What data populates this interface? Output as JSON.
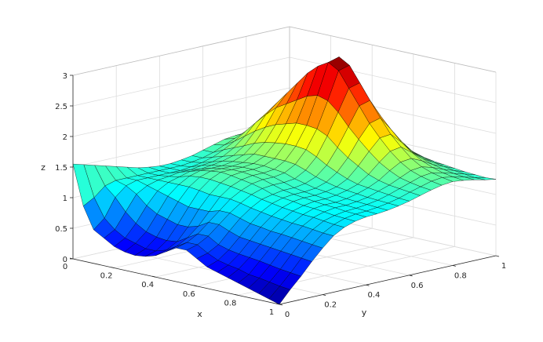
{
  "chart_data": {
    "type": "surface",
    "xlabel": "x",
    "ylabel": "y",
    "zlabel": "z",
    "xlim": [
      0,
      1
    ],
    "ylim": [
      0,
      1
    ],
    "zlim": [
      0,
      3
    ],
    "xticks": [
      "0",
      "0.2",
      "0.4",
      "0.6",
      "0.8",
      "1"
    ],
    "yticks": [
      "0",
      "0.2",
      "0.4",
      "0.6",
      "0.8",
      "1"
    ],
    "zticks": [
      "0",
      "0.5",
      "1",
      "1.5",
      "2",
      "2.5",
      "3"
    ],
    "grid": true,
    "colormap": "jet",
    "colormap_stops": [
      "#00008f",
      "#0000ff",
      "#00ffff",
      "#ffff00",
      "#ff0000",
      "#800000"
    ],
    "edge_color": "#000000",
    "x": [
      0,
      0.05,
      0.1,
      0.15,
      0.2,
      0.25,
      0.3,
      0.35,
      0.4,
      0.45,
      0.5,
      0.55,
      0.6,
      0.65,
      0.7,
      0.75,
      0.8,
      0.85,
      0.9,
      0.95,
      1
    ],
    "y": [
      0,
      0.05,
      0.1,
      0.15,
      0.2,
      0.25,
      0.3,
      0.35,
      0.4,
      0.45,
      0.5,
      0.55,
      0.6,
      0.65,
      0.7,
      0.75,
      0.8,
      0.85,
      0.9,
      0.95,
      1
    ],
    "z_rows_note_removed": true,
    "z": [
      [
        1.55,
        1.5,
        1.45,
        1.4,
        1.35,
        1.3,
        1.25,
        1.22,
        1.2,
        1.2,
        1.22,
        1.25,
        1.3,
        1.35,
        1.4,
        1.42,
        1.42,
        1.4,
        1.35,
        1.3,
        1.25
      ],
      [
        0.9,
        1.0,
        1.15,
        1.2,
        1.2,
        1.2,
        1.2,
        1.2,
        1.2,
        1.2,
        1.22,
        1.25,
        1.3,
        1.38,
        1.45,
        1.5,
        1.5,
        1.45,
        1.38,
        1.3,
        1.25
      ],
      [
        0.55,
        0.7,
        1.0,
        1.15,
        1.2,
        1.2,
        1.2,
        1.2,
        1.2,
        1.22,
        1.25,
        1.3,
        1.38,
        1.48,
        1.6,
        1.68,
        1.65,
        1.55,
        1.45,
        1.35,
        1.3
      ],
      [
        0.45,
        0.55,
        0.8,
        1.05,
        1.15,
        1.2,
        1.22,
        1.25,
        1.25,
        1.28,
        1.3,
        1.35,
        1.45,
        1.6,
        1.78,
        1.9,
        1.85,
        1.7,
        1.55,
        1.42,
        1.35
      ],
      [
        0.35,
        0.45,
        0.65,
        0.9,
        1.1,
        1.2,
        1.25,
        1.3,
        1.3,
        1.32,
        1.35,
        1.4,
        1.52,
        1.72,
        1.95,
        2.1,
        2.05,
        1.85,
        1.65,
        1.5,
        1.4
      ],
      [
        0.3,
        0.4,
        0.55,
        0.8,
        1.05,
        1.2,
        1.3,
        1.35,
        1.35,
        1.35,
        1.38,
        1.45,
        1.6,
        1.82,
        2.1,
        2.3,
        2.25,
        2.0,
        1.75,
        1.55,
        1.45
      ],
      [
        0.28,
        0.35,
        0.5,
        0.75,
        1.0,
        1.2,
        1.32,
        1.38,
        1.38,
        1.38,
        1.4,
        1.5,
        1.65,
        1.9,
        2.2,
        2.5,
        2.45,
        2.15,
        1.85,
        1.6,
        1.45
      ],
      [
        0.3,
        0.35,
        0.48,
        0.7,
        0.95,
        1.18,
        1.32,
        1.4,
        1.4,
        1.4,
        1.42,
        1.5,
        1.68,
        1.95,
        2.3,
        2.7,
        2.65,
        2.3,
        1.95,
        1.65,
        1.5
      ],
      [
        0.35,
        0.4,
        0.5,
        0.7,
        0.95,
        1.15,
        1.3,
        1.38,
        1.4,
        1.4,
        1.42,
        1.5,
        1.7,
        2.0,
        2.4,
        2.85,
        2.85,
        2.45,
        2.05,
        1.7,
        1.5
      ],
      [
        0.45,
        0.5,
        0.6,
        0.75,
        0.95,
        1.15,
        1.28,
        1.35,
        1.38,
        1.38,
        1.4,
        1.5,
        1.7,
        2.0,
        2.45,
        2.95,
        3.0,
        2.55,
        2.1,
        1.75,
        1.55
      ],
      [
        0.55,
        0.6,
        0.7,
        0.85,
        1.0,
        1.15,
        1.25,
        1.32,
        1.35,
        1.35,
        1.38,
        1.48,
        1.68,
        1.98,
        2.4,
        2.85,
        2.9,
        2.5,
        2.05,
        1.72,
        1.5
      ],
      [
        0.55,
        0.6,
        0.7,
        0.85,
        1.0,
        1.12,
        1.22,
        1.28,
        1.3,
        1.3,
        1.32,
        1.42,
        1.6,
        1.9,
        2.25,
        2.6,
        2.65,
        2.3,
        1.95,
        1.65,
        1.45
      ],
      [
        0.45,
        0.5,
        0.6,
        0.78,
        0.95,
        1.08,
        1.18,
        1.22,
        1.25,
        1.25,
        1.28,
        1.35,
        1.5,
        1.75,
        2.05,
        2.35,
        2.4,
        2.1,
        1.8,
        1.55,
        1.4
      ],
      [
        0.35,
        0.42,
        0.55,
        0.72,
        0.9,
        1.05,
        1.15,
        1.2,
        1.22,
        1.22,
        1.24,
        1.3,
        1.42,
        1.62,
        1.88,
        2.1,
        2.15,
        1.92,
        1.68,
        1.48,
        1.35
      ],
      [
        0.3,
        0.38,
        0.52,
        0.7,
        0.88,
        1.02,
        1.12,
        1.18,
        1.2,
        1.2,
        1.22,
        1.26,
        1.35,
        1.52,
        1.72,
        1.9,
        1.92,
        1.75,
        1.55,
        1.42,
        1.32
      ],
      [
        0.25,
        0.35,
        0.5,
        0.68,
        0.85,
        1.0,
        1.1,
        1.15,
        1.18,
        1.18,
        1.2,
        1.24,
        1.3,
        1.42,
        1.58,
        1.72,
        1.75,
        1.62,
        1.48,
        1.38,
        1.3
      ],
      [
        0.2,
        0.3,
        0.48,
        0.66,
        0.84,
        0.98,
        1.08,
        1.14,
        1.16,
        1.16,
        1.18,
        1.22,
        1.28,
        1.36,
        1.48,
        1.58,
        1.6,
        1.52,
        1.42,
        1.35,
        1.28
      ],
      [
        0.15,
        0.28,
        0.45,
        0.64,
        0.82,
        0.97,
        1.07,
        1.12,
        1.15,
        1.15,
        1.17,
        1.2,
        1.26,
        1.32,
        1.4,
        1.48,
        1.5,
        1.45,
        1.38,
        1.32,
        1.26
      ],
      [
        0.1,
        0.25,
        0.42,
        0.62,
        0.8,
        0.95,
        1.05,
        1.1,
        1.13,
        1.14,
        1.16,
        1.19,
        1.24,
        1.3,
        1.36,
        1.42,
        1.44,
        1.4,
        1.35,
        1.3,
        1.25
      ],
      [
        0.05,
        0.22,
        0.4,
        0.6,
        0.78,
        0.93,
        1.03,
        1.09,
        1.12,
        1.13,
        1.15,
        1.18,
        1.22,
        1.28,
        1.33,
        1.38,
        1.4,
        1.37,
        1.33,
        1.28,
        1.24
      ],
      [
        0.0,
        0.2,
        0.38,
        0.58,
        0.76,
        0.92,
        1.02,
        1.08,
        1.11,
        1.12,
        1.14,
        1.17,
        1.21,
        1.26,
        1.31,
        1.35,
        1.37,
        1.35,
        1.32,
        1.28,
        1.25
      ]
    ]
  }
}
